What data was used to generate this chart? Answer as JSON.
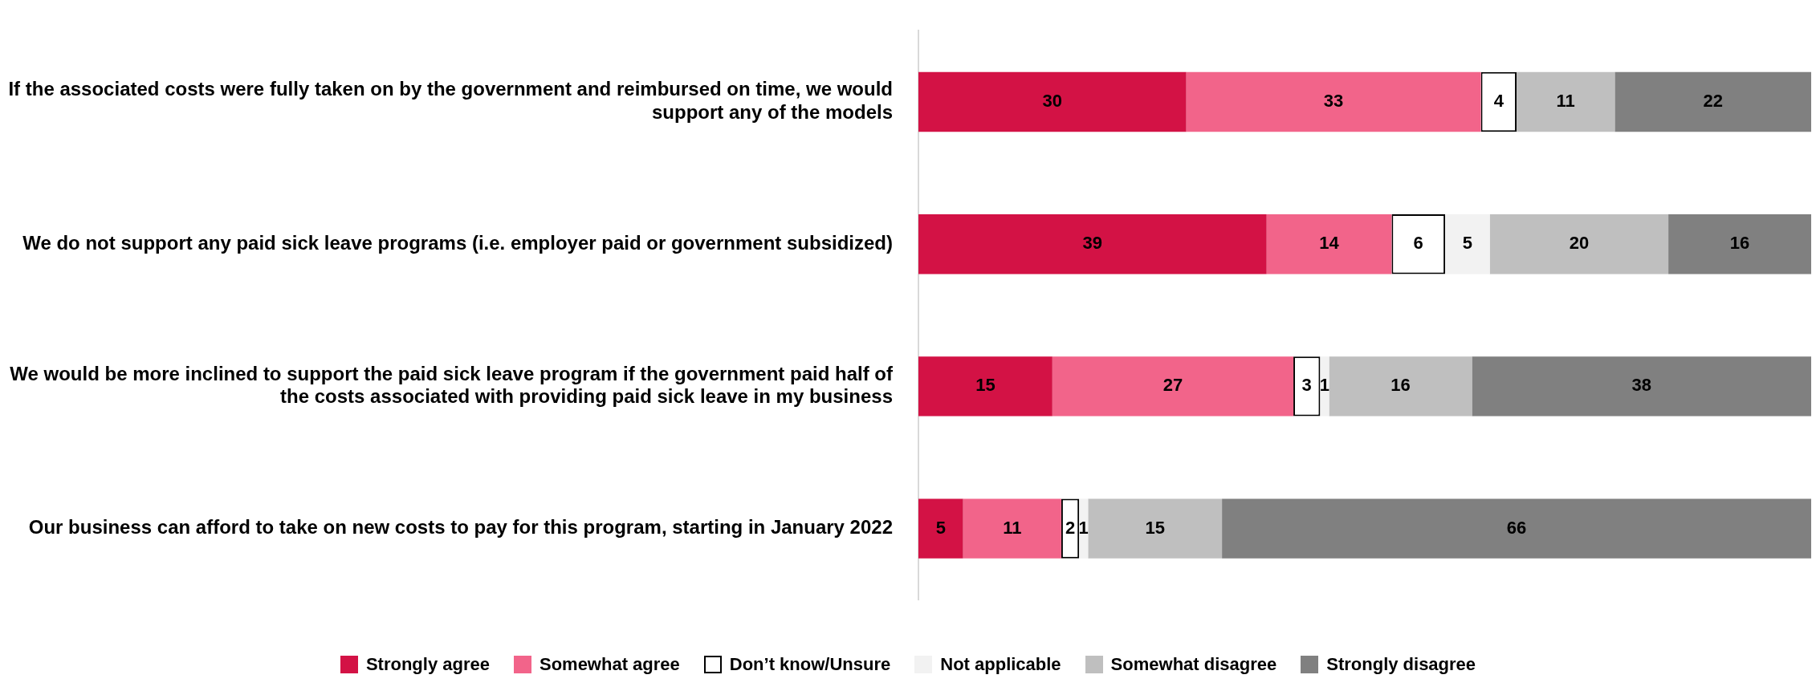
{
  "chart_data": {
    "type": "bar",
    "orientation": "horizontal",
    "stacked": true,
    "data_labels": true,
    "legend": "bottom",
    "tick_labels": "y",
    "xlim": [
      0,
      100
    ],
    "categories": [
      "If the associated costs were fully taken on by the government and reimbursed on time, we would support any of the models",
      "We do not support any paid sick leave programs (i.e. employer paid or government subsidized)",
      "We would be more inclined to support the paid sick leave program if the government paid half of the costs associated with providing paid sick leave in my business",
      "Our business can afford to take on new costs to pay for this program, starting in January 2022"
    ],
    "series": [
      {
        "name": "Strongly agree",
        "color": "#d31245",
        "values": [
          30,
          39,
          15,
          5
        ]
      },
      {
        "name": "Somewhat agree",
        "color": "#f2648a",
        "values": [
          33,
          14,
          27,
          11
        ]
      },
      {
        "name": "Don’t know/Unsure",
        "color": "#ffffff",
        "values": [
          4,
          6,
          3,
          2
        ]
      },
      {
        "name": "Not applicable",
        "color": "#f2f2f2",
        "values": [
          null,
          5,
          1,
          1
        ]
      },
      {
        "name": "Somewhat disagree",
        "color": "#bfbfbf",
        "values": [
          11,
          20,
          16,
          15
        ]
      },
      {
        "name": "Strongly disagree",
        "color": "#808080",
        "values": [
          22,
          16,
          38,
          66
        ]
      }
    ]
  }
}
